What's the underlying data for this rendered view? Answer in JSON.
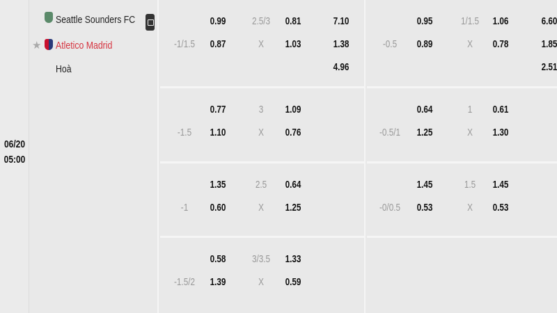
{
  "match": {
    "date": "06/20",
    "time": "05:00",
    "home": "Seattle Sounders FC",
    "away": "Atletico Madrid",
    "draw": "Hoà",
    "colors": {
      "away": "#d6323e",
      "text": "#222222",
      "muted": "#999999"
    }
  },
  "full_time": [
    {
      "hdp": "-1/1.5",
      "home": "0.99",
      "away": "0.87",
      "ou": "2.5/3",
      "over": "0.81",
      "under": "1.03",
      "x_label": "X",
      "x12": [
        "7.10",
        "1.38",
        "4.96"
      ]
    },
    {
      "hdp": "-1.5",
      "home": "0.77",
      "away": "1.10",
      "ou": "3",
      "over": "1.09",
      "under": "0.76",
      "x_label": "X"
    },
    {
      "hdp": "-1",
      "home": "1.35",
      "away": "0.60",
      "ou": "2.5",
      "over": "0.64",
      "under": "1.25",
      "x_label": "X"
    },
    {
      "hdp": "-1.5/2",
      "home": "0.58",
      "away": "1.39",
      "ou": "3/3.5",
      "over": "1.33",
      "under": "0.59",
      "x_label": "X"
    }
  ],
  "half_time": [
    {
      "hdp": "-0.5",
      "home": "0.95",
      "away": "0.89",
      "ou": "1/1.5",
      "over": "1.06",
      "under": "0.78",
      "x_label": "X",
      "x12": [
        "6.60",
        "1.85",
        "2.51"
      ]
    },
    {
      "hdp": "-0.5/1",
      "home": "0.64",
      "away": "1.25",
      "ou": "1",
      "over": "0.61",
      "under": "1.30",
      "x_label": "X"
    },
    {
      "hdp": "-0/0.5",
      "home": "1.45",
      "away": "0.53",
      "ou": "1.5",
      "over": "1.45",
      "under": "0.53",
      "x_label": "X"
    }
  ]
}
